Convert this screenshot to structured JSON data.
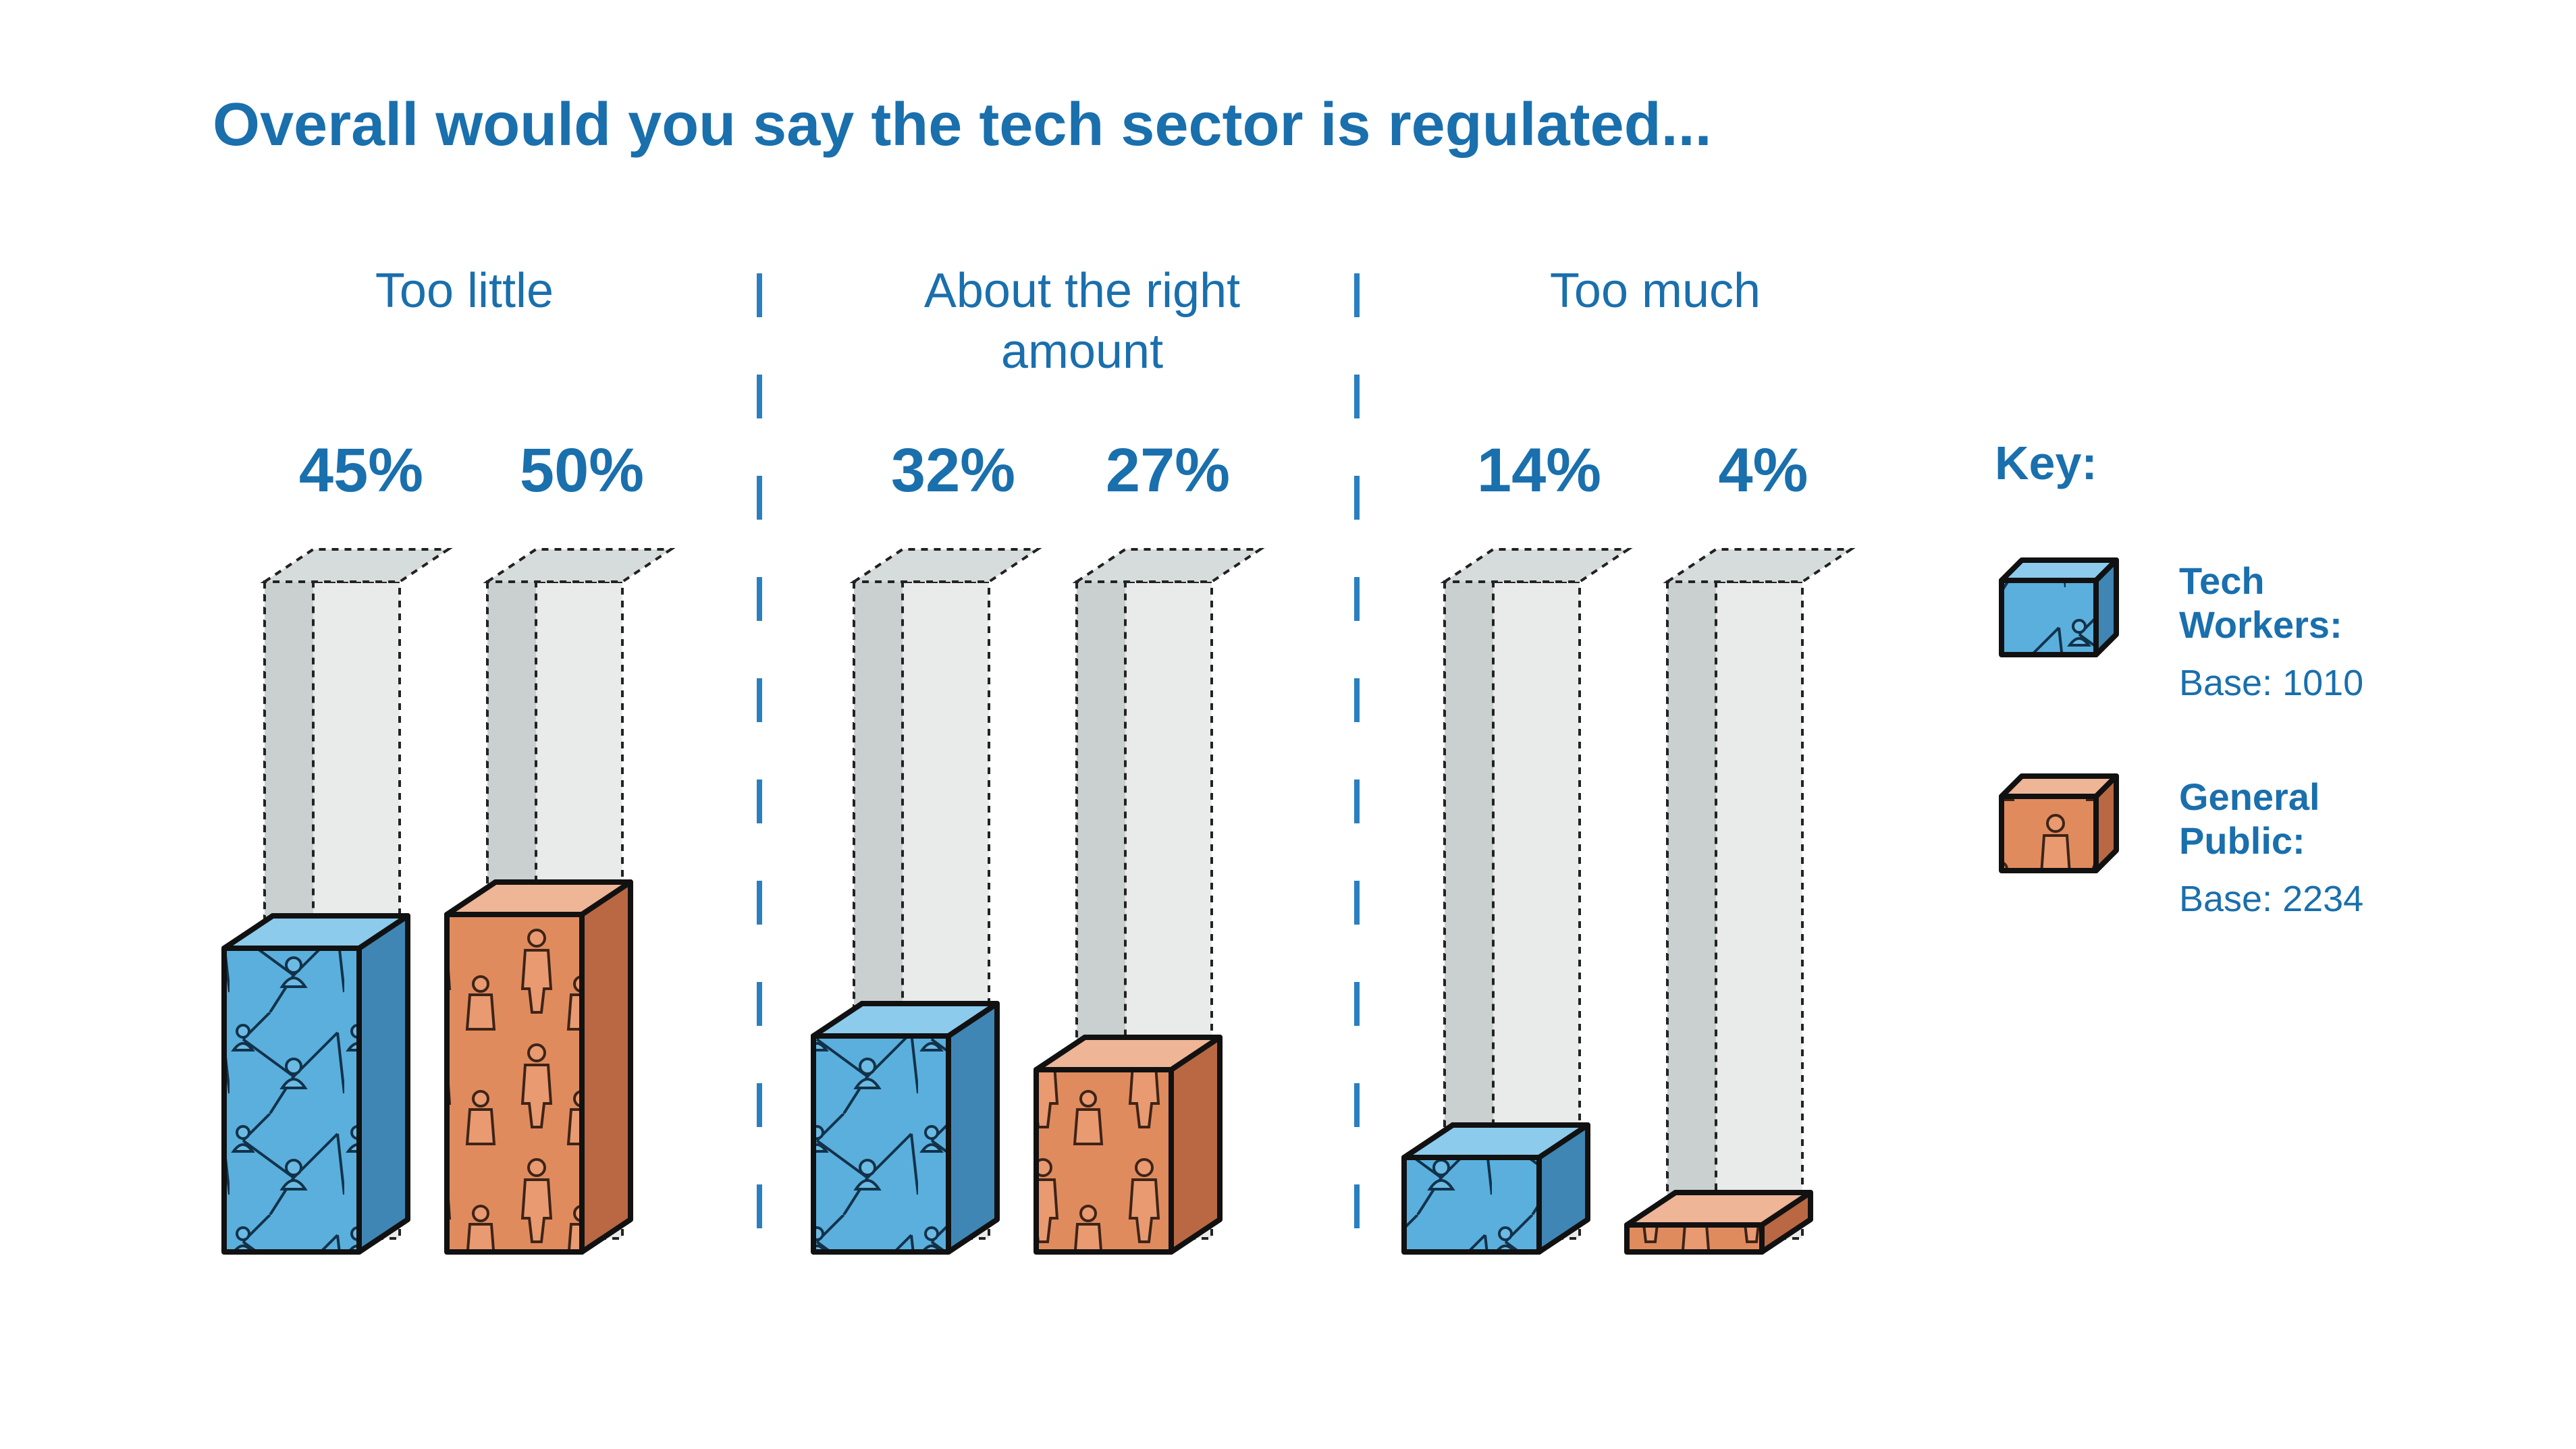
{
  "title": "Overall would you say the tech sector is regulated...",
  "colors": {
    "text": "#1a6fad",
    "tech_workers": "#5aafdd",
    "general_public": "#e08b5e",
    "ghost_front": "#e8ebe9",
    "ghost_side": "#c9d0cf",
    "ghost_top": "#d6dcdb",
    "divider": "#2a7fc0"
  },
  "chart_data": {
    "type": "bar",
    "title": "Overall would you say the tech sector is regulated...",
    "categories": [
      "Too little",
      "About the right amount",
      "Too much"
    ],
    "category_lines": [
      [
        "Too little"
      ],
      [
        "About the right",
        "amount"
      ],
      [
        "Too much"
      ]
    ],
    "series": [
      {
        "name": "Tech Workers",
        "values": [
          45,
          32,
          14
        ],
        "labels": [
          "45%",
          "32%",
          "14%"
        ]
      },
      {
        "name": "General Public",
        "values": [
          50,
          27,
          4
        ],
        "labels": [
          "50%",
          "27%",
          "4%"
        ]
      }
    ],
    "ylim": [
      0,
      100
    ],
    "grid": false,
    "legend_position": "right"
  },
  "key": {
    "heading": "Key:",
    "items": [
      {
        "name_lines": [
          "Tech",
          "Workers:"
        ],
        "base": "Base: 1010"
      },
      {
        "name_lines": [
          "General",
          "Public:"
        ],
        "base": "Base: 2234"
      }
    ]
  }
}
